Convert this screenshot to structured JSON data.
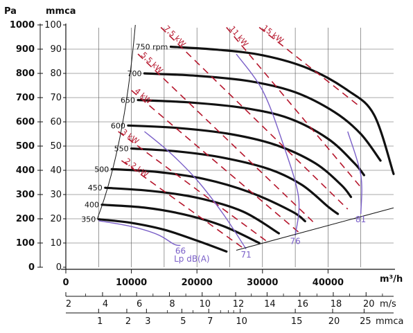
{
  "colors": {
    "fan_curve": "#111111",
    "power_line": "#b5152b",
    "sound_line": "#7a5fc8",
    "grid": "#555555",
    "axis": "#111111"
  },
  "chart_data": {
    "type": "line",
    "title": "",
    "axes": {
      "y_left_unit": "Pa",
      "y_right_unit": "mmca",
      "x_unit": "m³/h",
      "velocity_unit": "m/s",
      "dynamic_pressure_unit": "mmca",
      "xlim": [
        0,
        50000
      ],
      "ylim_pa": [
        0,
        1000
      ],
      "y_pa_ticks": [
        "0",
        "100",
        "200",
        "300",
        "400",
        "500",
        "600",
        "700",
        "800",
        "900",
        "1000"
      ],
      "y_mmca_ticks": [
        "0",
        "10",
        "20",
        "30",
        "40",
        "50",
        "60",
        "70",
        "80",
        "90",
        "100"
      ],
      "x_ticks": [
        {
          "value": 0,
          "label": "0"
        },
        {
          "value": 10000,
          "label": "10000"
        },
        {
          "value": 20000,
          "label": "20000"
        },
        {
          "value": 30000,
          "label": "30000"
        },
        {
          "value": 40000,
          "label": "40000"
        }
      ],
      "velocity_ticks": [
        {
          "label": "2",
          "at": 0
        },
        {
          "label": "4",
          "at": 5600
        },
        {
          "label": "6",
          "at": 10800
        },
        {
          "label": "8",
          "at": 15800
        },
        {
          "label": "10",
          "at": 20800
        },
        {
          "label": "12",
          "at": 25900
        },
        {
          "label": "14",
          "at": 30700
        },
        {
          "label": "16",
          "at": 35700
        },
        {
          "label": "18",
          "at": 40800
        },
        {
          "label": "20",
          "at": 45800
        }
      ],
      "velocity_minor": [
        3000,
        8300,
        13300,
        18300,
        23400,
        28300,
        33200,
        38300,
        43300,
        48300
      ],
      "dynamic_pressure_ticks": [
        {
          "label": "1",
          "at": 5000
        },
        {
          "label": "2",
          "at": 9300
        },
        {
          "label": "3",
          "at": 12300
        },
        {
          "label": "5",
          "at": 17700
        },
        {
          "label": "7",
          "at": 21800
        },
        {
          "label": "10",
          "at": 26600
        },
        {
          "label": "15",
          "at": 35000
        },
        {
          "label": "20",
          "at": 40700
        },
        {
          "label": "25",
          "at": 45500
        }
      ],
      "dynamic_pressure_minor": [
        15500,
        19400,
        23600,
        24800,
        25600
      ]
    },
    "series": [
      {
        "name": "350",
        "points": [
          [
            5000,
            198
          ],
          [
            10000,
            183
          ],
          [
            15000,
            155
          ],
          [
            20000,
            110
          ],
          [
            24500,
            65
          ]
        ]
      },
      {
        "name": "400",
        "points": [
          [
            5500,
            258
          ],
          [
            12000,
            246
          ],
          [
            18000,
            218
          ],
          [
            24000,
            170
          ],
          [
            29500,
            100
          ]
        ]
      },
      {
        "name": "450",
        "points": [
          [
            6000,
            328
          ],
          [
            13000,
            315
          ],
          [
            20000,
            287
          ],
          [
            27000,
            230
          ],
          [
            32500,
            140
          ]
        ]
      },
      {
        "name": "500",
        "points": [
          [
            7000,
            405
          ],
          [
            14000,
            393
          ],
          [
            21000,
            365
          ],
          [
            28000,
            310
          ],
          [
            34500,
            230
          ],
          [
            36500,
            190
          ]
        ]
      },
      {
        "name": "550",
        "points": [
          [
            10000,
            490
          ],
          [
            17000,
            478
          ],
          [
            24000,
            452
          ],
          [
            31000,
            405
          ],
          [
            36000,
            340
          ],
          [
            40000,
            250
          ],
          [
            41500,
            220
          ]
        ]
      },
      {
        "name": "600",
        "points": [
          [
            9500,
            585
          ],
          [
            17000,
            575
          ],
          [
            25000,
            550
          ],
          [
            32000,
            505
          ],
          [
            38000,
            430
          ],
          [
            42000,
            340
          ],
          [
            43500,
            290
          ]
        ]
      },
      {
        "name": "650",
        "points": [
          [
            11000,
            690
          ],
          [
            19000,
            680
          ],
          [
            27000,
            658
          ],
          [
            34000,
            615
          ],
          [
            40000,
            530
          ],
          [
            44000,
            430
          ],
          [
            45500,
            380
          ]
        ]
      },
      {
        "name": "700",
        "points": [
          [
            12000,
            800
          ],
          [
            20000,
            790
          ],
          [
            28000,
            768
          ],
          [
            35000,
            722
          ],
          [
            41000,
            640
          ],
          [
            45000,
            550
          ],
          [
            48000,
            440
          ]
        ]
      },
      {
        "name": "750 rpm",
        "points": [
          [
            16000,
            910
          ],
          [
            23000,
            898
          ],
          [
            30000,
            875
          ],
          [
            37000,
            820
          ],
          [
            43000,
            730
          ],
          [
            47000,
            630
          ],
          [
            50000,
            385
          ]
        ]
      }
    ],
    "power_lines": [
      {
        "label": "2,2 kW"
      },
      {
        "label": "3 kW"
      },
      {
        "label": "4 kW"
      },
      {
        "label": "5,5 kW"
      },
      {
        "label": "7,5 kW"
      },
      {
        "label": "11 kW"
      },
      {
        "label": "15 kW"
      }
    ],
    "sound_levels": [
      {
        "label": "66",
        "points": [
          [
            5000,
            192
          ],
          [
            10000,
            168
          ],
          [
            14000,
            135
          ],
          [
            16500,
            95
          ],
          [
            17500,
            90
          ]
        ]
      },
      {
        "label": "71",
        "points": [
          [
            12000,
            560
          ],
          [
            16000,
            470
          ],
          [
            20000,
            360
          ],
          [
            24000,
            220
          ],
          [
            27500,
            75
          ]
        ]
      },
      {
        "label": "76",
        "points": [
          [
            26000,
            880
          ],
          [
            30000,
            730
          ],
          [
            33000,
            520
          ],
          [
            35500,
            290
          ],
          [
            35000,
            130
          ]
        ]
      },
      {
        "label": "81",
        "points": [
          [
            43000,
            560
          ],
          [
            45000,
            380
          ],
          [
            45000,
            220
          ]
        ]
      }
    ],
    "sound_unit_label": "Lp dB(A)"
  }
}
